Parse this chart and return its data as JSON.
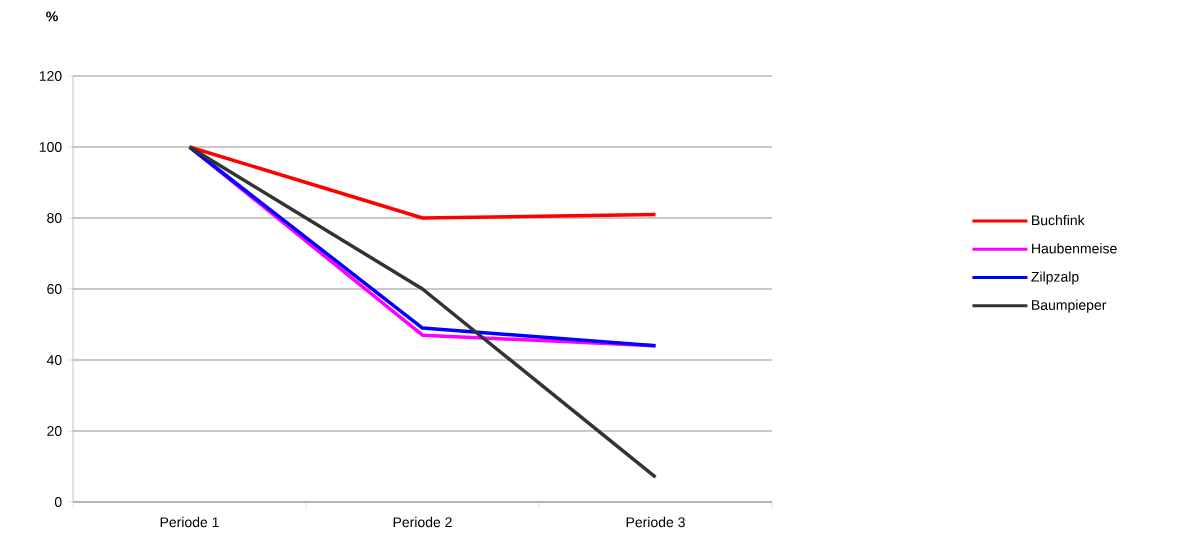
{
  "chart_data": {
    "type": "line",
    "ylabel": "%",
    "categories": [
      "Periode 1",
      "Periode 2",
      "Periode 3"
    ],
    "series": [
      {
        "name": "Buchfink",
        "color": "#ff0000",
        "values": [
          100,
          80,
          81
        ]
      },
      {
        "name": "Haubenmeise",
        "color": "#ff00ff",
        "values": [
          100,
          47,
          44
        ]
      },
      {
        "name": "Zilpzalp",
        "color": "#0000ff",
        "values": [
          100,
          49,
          44
        ]
      },
      {
        "name": "Baumpieper",
        "color": "#333333",
        "values": [
          100,
          60,
          7
        ]
      }
    ],
    "ylim": [
      0,
      120
    ],
    "yticks": [
      0,
      20,
      40,
      60,
      80,
      100,
      120
    ],
    "grid": "y",
    "legend": "right"
  }
}
